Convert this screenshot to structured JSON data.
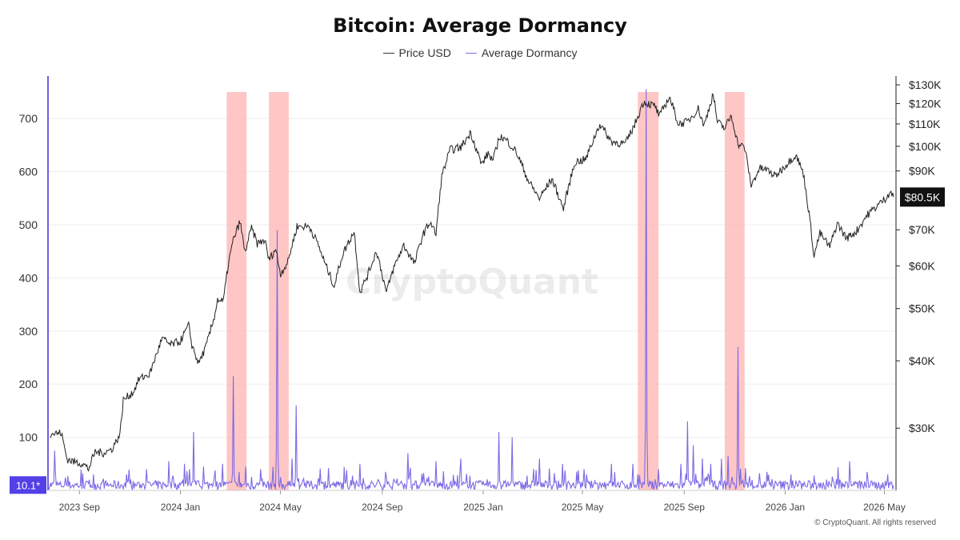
{
  "title": "Bitcoin: Average Dormancy",
  "legend": {
    "price": "Price USD",
    "dormancy": "Average Dormancy"
  },
  "colors": {
    "price": "#222222",
    "dormancy": "#7b6ae6",
    "highlight": "#ffb3b3",
    "left_axis": "#6f5fe0",
    "current_badge": "#111111",
    "dormancy_badge": "#5340e8"
  },
  "watermark": "CryptoQuant",
  "copyright": "© CryptoQuant. All rights reserved",
  "chart_data": {
    "type": "line",
    "title": "Bitcoin: Average Dormancy",
    "grid": true,
    "legend_position": "top-center",
    "x_range": [
      "2023-07-25",
      "2026-05-15"
    ],
    "x_ticks": [
      {
        "date": "2023-09-01",
        "label": "2023 Sep"
      },
      {
        "date": "2024-01-01",
        "label": "2024 Jan"
      },
      {
        "date": "2024-05-01",
        "label": "2024 May"
      },
      {
        "date": "2024-09-01",
        "label": "2024 Sep"
      },
      {
        "date": "2025-01-01",
        "label": "2025 Jan"
      },
      {
        "date": "2025-05-01",
        "label": "2025 May"
      },
      {
        "date": "2025-09-01",
        "label": "2025 Sep"
      },
      {
        "date": "2026-01-01",
        "label": "2026 Jan"
      },
      {
        "date": "2026-05-01",
        "label": "2026 May"
      }
    ],
    "y_left": {
      "label": "",
      "range": [
        0,
        780
      ],
      "ticks": [
        100,
        200,
        300,
        400,
        500,
        600,
        700
      ],
      "current_value": 10.1,
      "current_label": "10.1*"
    },
    "y_right": {
      "label": "",
      "scale": "log",
      "range": [
        23000,
        135000
      ],
      "ticks": [
        {
          "value": 30000,
          "label": "$30K"
        },
        {
          "value": 40000,
          "label": "$40K"
        },
        {
          "value": 50000,
          "label": "$50K"
        },
        {
          "value": 60000,
          "label": "$60K"
        },
        {
          "value": 70000,
          "label": "$70K"
        },
        {
          "value": 90000,
          "label": "$90K"
        },
        {
          "value": 100000,
          "label": "$100K"
        },
        {
          "value": 110000,
          "label": "$110K"
        },
        {
          "value": 120000,
          "label": "$120K"
        },
        {
          "value": 130000,
          "label": "$130K"
        }
      ],
      "current_value": 80500,
      "current_label": "$80.5K"
    },
    "highlights": [
      {
        "start": "2024-02-26",
        "end": "2024-03-21"
      },
      {
        "start": "2024-04-17",
        "end": "2024-05-11"
      },
      {
        "start": "2025-07-07",
        "end": "2025-08-01"
      },
      {
        "start": "2025-10-20",
        "end": "2025-11-13"
      }
    ],
    "series": [
      {
        "name": "Price USD",
        "axis": "right",
        "points": [
          [
            "2023-07-28",
            29300
          ],
          [
            "2023-08-10",
            29400
          ],
          [
            "2023-08-17",
            26300
          ],
          [
            "2023-08-25",
            26000
          ],
          [
            "2023-09-05",
            25800
          ],
          [
            "2023-09-12",
            25200
          ],
          [
            "2023-09-20",
            27100
          ],
          [
            "2023-09-30",
            27000
          ],
          [
            "2023-10-10",
            27400
          ],
          [
            "2023-10-20",
            29200
          ],
          [
            "2023-10-24",
            33800
          ],
          [
            "2023-11-05",
            35000
          ],
          [
            "2023-11-12",
            37000
          ],
          [
            "2023-11-25",
            37800
          ],
          [
            "2023-12-05",
            41900
          ],
          [
            "2023-12-10",
            44000
          ],
          [
            "2023-12-20",
            42800
          ],
          [
            "2024-01-01",
            43500
          ],
          [
            "2024-01-11",
            46500
          ],
          [
            "2024-01-15",
            42800
          ],
          [
            "2024-01-23",
            39500
          ],
          [
            "2024-02-01",
            42500
          ],
          [
            "2024-02-10",
            47500
          ],
          [
            "2024-02-15",
            52000
          ],
          [
            "2024-02-22",
            51500
          ],
          [
            "2024-02-28",
            60500
          ],
          [
            "2024-03-05",
            67000
          ],
          [
            "2024-03-13",
            72500
          ],
          [
            "2024-03-19",
            63500
          ],
          [
            "2024-03-27",
            70500
          ],
          [
            "2024-04-03",
            66000
          ],
          [
            "2024-04-12",
            67000
          ],
          [
            "2024-04-17",
            61500
          ],
          [
            "2024-04-25",
            64500
          ],
          [
            "2024-05-01",
            58000
          ],
          [
            "2024-05-10",
            61000
          ],
          [
            "2024-05-21",
            71000
          ],
          [
            "2024-06-05",
            71000
          ],
          [
            "2024-06-15",
            66000
          ],
          [
            "2024-06-24",
            60500
          ],
          [
            "2024-07-05",
            55000
          ],
          [
            "2024-07-15",
            63000
          ],
          [
            "2024-07-29",
            69500
          ],
          [
            "2024-08-05",
            53500
          ],
          [
            "2024-08-15",
            58000
          ],
          [
            "2024-08-25",
            64000
          ],
          [
            "2024-09-06",
            53500
          ],
          [
            "2024-09-15",
            59500
          ],
          [
            "2024-09-27",
            65500
          ],
          [
            "2024-10-10",
            60500
          ],
          [
            "2024-10-20",
            68500
          ],
          [
            "2024-10-29",
            72500
          ],
          [
            "2024-11-05",
            68500
          ],
          [
            "2024-11-12",
            88000
          ],
          [
            "2024-11-22",
            98500
          ],
          [
            "2024-12-05",
            99500
          ],
          [
            "2024-12-17",
            106000
          ],
          [
            "2024-12-30",
            92500
          ],
          [
            "2025-01-07",
            97000
          ],
          [
            "2025-01-13",
            94000
          ],
          [
            "2025-01-21",
            104500
          ],
          [
            "2025-01-31",
            102000
          ],
          [
            "2025-02-10",
            97500
          ],
          [
            "2025-02-25",
            86000
          ],
          [
            "2025-03-10",
            80000
          ],
          [
            "2025-03-25",
            87000
          ],
          [
            "2025-04-08",
            76500
          ],
          [
            "2025-04-22",
            93500
          ],
          [
            "2025-05-05",
            94500
          ],
          [
            "2025-05-15",
            103500
          ],
          [
            "2025-05-22",
            110000
          ],
          [
            "2025-06-05",
            102000
          ],
          [
            "2025-06-22",
            101000
          ],
          [
            "2025-07-03",
            109500
          ],
          [
            "2025-07-14",
            121000
          ],
          [
            "2025-07-28",
            118500
          ],
          [
            "2025-08-02",
            113500
          ],
          [
            "2025-08-14",
            123500
          ],
          [
            "2025-08-25",
            110000
          ],
          [
            "2025-09-05",
            111000
          ],
          [
            "2025-09-18",
            117500
          ],
          [
            "2025-09-25",
            109000
          ],
          [
            "2025-10-06",
            125000
          ],
          [
            "2025-10-11",
            111000
          ],
          [
            "2025-10-20",
            108000
          ],
          [
            "2025-10-28",
            114000
          ],
          [
            "2025-11-05",
            101000
          ],
          [
            "2025-11-13",
            99500
          ],
          [
            "2025-11-21",
            84500
          ],
          [
            "2025-12-01",
            91000
          ],
          [
            "2025-12-10",
            90500
          ],
          [
            "2025-12-20",
            88000
          ],
          [
            "2026-01-05",
            93500
          ],
          [
            "2026-01-14",
            96500
          ],
          [
            "2026-01-23",
            89000
          ],
          [
            "2026-02-05",
            62500
          ],
          [
            "2026-02-12",
            69000
          ],
          [
            "2026-02-24",
            65000
          ],
          [
            "2026-03-05",
            72000
          ],
          [
            "2026-03-16",
            67500
          ],
          [
            "2026-03-28",
            69500
          ],
          [
            "2026-04-10",
            74500
          ],
          [
            "2026-04-22",
            77500
          ],
          [
            "2026-05-02",
            80000
          ],
          [
            "2026-05-08",
            82500
          ],
          [
            "2026-05-12",
            80500
          ]
        ]
      },
      {
        "name": "Average Dormancy",
        "axis": "left",
        "baseline": 10,
        "spikes": [
          [
            "2023-08-02",
            75
          ],
          [
            "2023-09-30",
            22
          ],
          [
            "2023-11-21",
            40
          ],
          [
            "2023-12-18",
            55
          ],
          [
            "2024-01-06",
            50
          ],
          [
            "2024-01-12",
            40
          ],
          [
            "2024-01-17",
            110
          ],
          [
            "2024-01-29",
            45
          ],
          [
            "2024-02-21",
            50
          ],
          [
            "2024-03-05",
            215
          ],
          [
            "2024-03-12",
            35
          ],
          [
            "2024-03-20",
            45
          ],
          [
            "2024-04-07",
            40
          ],
          [
            "2024-04-22",
            45
          ],
          [
            "2024-04-27",
            490
          ],
          [
            "2024-05-15",
            60
          ],
          [
            "2024-05-20",
            160
          ],
          [
            "2024-06-28",
            42
          ],
          [
            "2024-08-05",
            50
          ],
          [
            "2024-09-05",
            35
          ],
          [
            "2024-10-02",
            70
          ],
          [
            "2024-11-05",
            55
          ],
          [
            "2024-12-05",
            60
          ],
          [
            "2025-01-20",
            110
          ],
          [
            "2025-02-05",
            100
          ],
          [
            "2025-03-10",
            60
          ],
          [
            "2025-04-07",
            50
          ],
          [
            "2025-05-03",
            40
          ],
          [
            "2025-06-05",
            50
          ],
          [
            "2025-07-01",
            50
          ],
          [
            "2025-07-17",
            755
          ],
          [
            "2025-08-01",
            40
          ],
          [
            "2025-08-28",
            50
          ],
          [
            "2025-09-05",
            130
          ],
          [
            "2025-09-12",
            85
          ],
          [
            "2025-09-23",
            60
          ],
          [
            "2025-10-03",
            50
          ],
          [
            "2025-10-16",
            60
          ],
          [
            "2025-10-24",
            65
          ],
          [
            "2025-11-05",
            270
          ],
          [
            "2025-11-14",
            42
          ],
          [
            "2025-12-10",
            35
          ],
          [
            "2026-01-08",
            30
          ],
          [
            "2026-02-05",
            28
          ],
          [
            "2026-03-20",
            55
          ],
          [
            "2026-04-10",
            35
          ],
          [
            "2026-05-05",
            30
          ]
        ]
      }
    ]
  }
}
